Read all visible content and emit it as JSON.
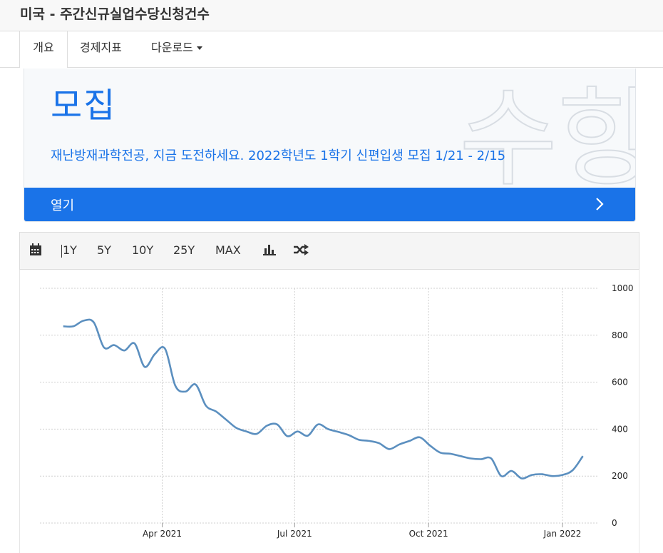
{
  "header": {
    "title": "미국 - 주간신규실업수당신청건수"
  },
  "tabs": [
    {
      "label": "개요"
    },
    {
      "label": "경제지표"
    },
    {
      "label": "다운로드"
    }
  ],
  "ad": {
    "title": "모집",
    "body": "재난방재과학전공, 지금 도전하세요. 2022학년도 1학기 신편입생 모집 1/21 - 2/15",
    "open_label": "열기",
    "watermark": "수항",
    "accent_color": "#1a73e8"
  },
  "toolbar": {
    "calendar_icon": "calendar-icon",
    "ranges": [
      "1Y",
      "5Y",
      "10Y",
      "25Y",
      "MAX"
    ],
    "bar_icon": "bar-chart-icon",
    "shuffle_icon": "shuffle-icon"
  },
  "chart_data": {
    "type": "line",
    "title": "",
    "xlabel": "",
    "ylabel": "",
    "ylim": [
      0,
      1000
    ],
    "y_ticks": [
      0,
      200,
      400,
      600,
      800,
      1000
    ],
    "x_ticks": [
      {
        "label": "Apr 2021",
        "date": "2021-04-01"
      },
      {
        "label": "Jul 2021",
        "date": "2021-07-01"
      },
      {
        "label": "Oct 2021",
        "date": "2021-10-01"
      },
      {
        "label": "Jan 2022",
        "date": "2022-01-01"
      }
    ],
    "grid": true,
    "line_color": "#5b8fbf",
    "series": [
      {
        "x": [
          "2021-01-23",
          "2021-01-30",
          "2021-02-06",
          "2021-02-13",
          "2021-02-20",
          "2021-02-27",
          "2021-03-06",
          "2021-03-13",
          "2021-03-20",
          "2021-03-27",
          "2021-04-03",
          "2021-04-10",
          "2021-04-17",
          "2021-04-24",
          "2021-05-01",
          "2021-05-08",
          "2021-05-15",
          "2021-05-22",
          "2021-05-29",
          "2021-06-05",
          "2021-06-12",
          "2021-06-19",
          "2021-06-26",
          "2021-07-03",
          "2021-07-10",
          "2021-07-17",
          "2021-07-24",
          "2021-07-31",
          "2021-08-07",
          "2021-08-14",
          "2021-08-21",
          "2021-08-28",
          "2021-09-04",
          "2021-09-11",
          "2021-09-18",
          "2021-09-25",
          "2021-10-02",
          "2021-10-09",
          "2021-10-16",
          "2021-10-23",
          "2021-10-30",
          "2021-11-06",
          "2021-11-13",
          "2021-11-20",
          "2021-11-27",
          "2021-12-04",
          "2021-12-11",
          "2021-12-18",
          "2021-12-25",
          "2022-01-01",
          "2022-01-08",
          "2022-01-15"
        ],
        "y": [
          838,
          838,
          862,
          855,
          748,
          758,
          735,
          765,
          665,
          720,
          742,
          585,
          560,
          590,
          500,
          475,
          440,
          405,
          390,
          380,
          415,
          420,
          370,
          390,
          372,
          420,
          400,
          388,
          375,
          355,
          350,
          340,
          315,
          335,
          350,
          365,
          330,
          300,
          295,
          285,
          275,
          272,
          275,
          200,
          222,
          190,
          205,
          208,
          200,
          205,
          225,
          285
        ]
      }
    ]
  }
}
